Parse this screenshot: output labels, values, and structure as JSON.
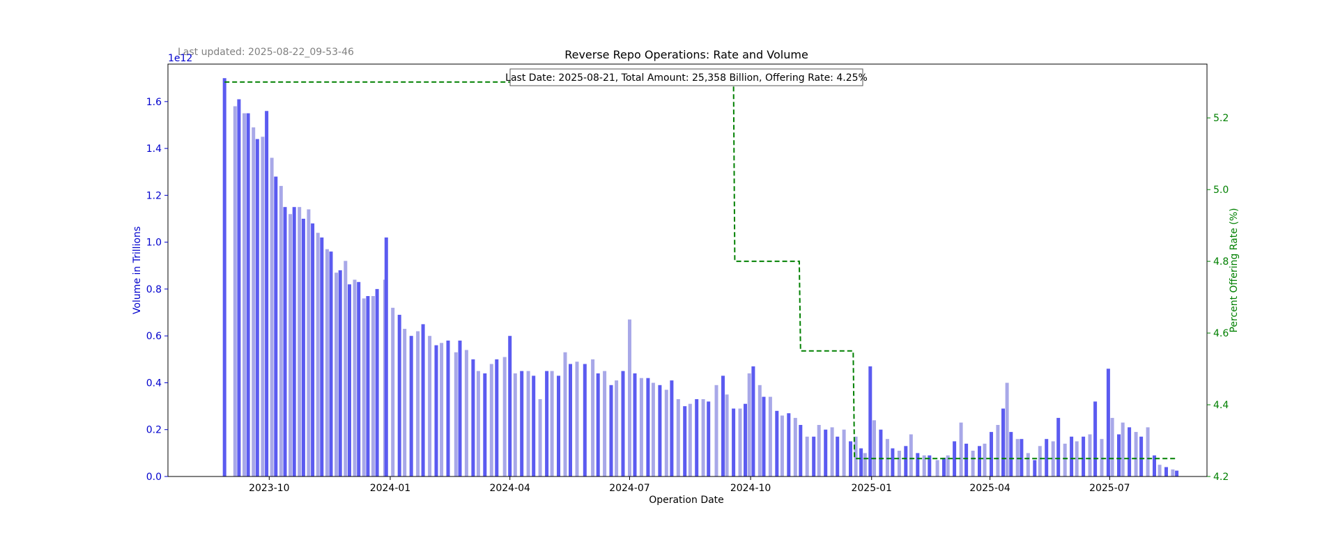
{
  "chart_data": {
    "type": "bar",
    "title": "Reverse Repo Operations: Rate and Volume",
    "updated_note": "Last updated: 2025-08-22_09-53-46",
    "annotation": "Last Date: 2025-08-21, Total Amount: 25,358 Billion, Offering Rate: 4.25%",
    "xlabel": "Operation Date",
    "ylabel_left": "Volume in Trillions",
    "ylabel_right": "Percent Offering Rate (%)",
    "left_offset_label": "1e12",
    "xlim": [
      "2023-07-16",
      "2025-09-13"
    ],
    "ylim_left": [
      0,
      1.76
    ],
    "ylim_right": [
      4.2,
      5.35
    ],
    "x_ticks": [
      "2023-10",
      "2024-01",
      "2024-04",
      "2024-07",
      "2024-10",
      "2025-01",
      "2025-04",
      "2025-07"
    ],
    "y_ticks_left": [
      "0.0",
      "0.2",
      "0.4",
      "0.6",
      "0.8",
      "1.0",
      "1.2",
      "1.4",
      "1.6"
    ],
    "y_ticks_right": [
      "4.2",
      "4.4",
      "4.6",
      "4.8",
      "5.0",
      "5.2"
    ],
    "colors": {
      "volume": "#5b5bf0",
      "volume_light": "#a8a8e8",
      "rate": "#008000",
      "left_axis": "#0000cd",
      "right_axis": "#008000"
    },
    "volume_series": {
      "name": "Volume",
      "points": [
        [
          "2023-08-28",
          1.7
        ],
        [
          "2023-09-05",
          1.58
        ],
        [
          "2023-09-08",
          1.61
        ],
        [
          "2023-09-12",
          1.55
        ],
        [
          "2023-09-15",
          1.55
        ],
        [
          "2023-09-19",
          1.49
        ],
        [
          "2023-09-22",
          1.44
        ],
        [
          "2023-09-26",
          1.45
        ],
        [
          "2023-09-29",
          1.56
        ],
        [
          "2023-10-03",
          1.36
        ],
        [
          "2023-10-06",
          1.28
        ],
        [
          "2023-10-10",
          1.24
        ],
        [
          "2023-10-13",
          1.15
        ],
        [
          "2023-10-17",
          1.12
        ],
        [
          "2023-10-20",
          1.15
        ],
        [
          "2023-10-24",
          1.15
        ],
        [
          "2023-10-27",
          1.1
        ],
        [
          "2023-10-31",
          1.14
        ],
        [
          "2023-11-03",
          1.08
        ],
        [
          "2023-11-07",
          1.04
        ],
        [
          "2023-11-10",
          1.02
        ],
        [
          "2023-11-14",
          0.97
        ],
        [
          "2023-11-17",
          0.96
        ],
        [
          "2023-11-21",
          0.87
        ],
        [
          "2023-11-24",
          0.88
        ],
        [
          "2023-11-28",
          0.92
        ],
        [
          "2023-12-01",
          0.82
        ],
        [
          "2023-12-05",
          0.84
        ],
        [
          "2023-12-08",
          0.83
        ],
        [
          "2023-12-12",
          0.76
        ],
        [
          "2023-12-15",
          0.77
        ],
        [
          "2023-12-19",
          0.77
        ],
        [
          "2023-12-22",
          0.8
        ],
        [
          "2023-12-28",
          0.84
        ],
        [
          "2023-12-29",
          1.02
        ],
        [
          "2024-01-03",
          0.72
        ],
        [
          "2024-01-08",
          0.69
        ],
        [
          "2024-01-12",
          0.63
        ],
        [
          "2024-01-17",
          0.6
        ],
        [
          "2024-01-22",
          0.62
        ],
        [
          "2024-01-26",
          0.65
        ],
        [
          "2024-01-31",
          0.6
        ],
        [
          "2024-02-05",
          0.56
        ],
        [
          "2024-02-09",
          0.57
        ],
        [
          "2024-02-14",
          0.58
        ],
        [
          "2024-02-20",
          0.53
        ],
        [
          "2024-02-23",
          0.58
        ],
        [
          "2024-02-28",
          0.54
        ],
        [
          "2024-03-04",
          0.5
        ],
        [
          "2024-03-08",
          0.45
        ],
        [
          "2024-03-13",
          0.44
        ],
        [
          "2024-03-18",
          0.48
        ],
        [
          "2024-03-22",
          0.5
        ],
        [
          "2024-03-28",
          0.51
        ],
        [
          "2024-04-01",
          0.6
        ],
        [
          "2024-04-05",
          0.44
        ],
        [
          "2024-04-10",
          0.45
        ],
        [
          "2024-04-15",
          0.45
        ],
        [
          "2024-04-19",
          0.43
        ],
        [
          "2024-04-24",
          0.33
        ],
        [
          "2024-04-29",
          0.45
        ],
        [
          "2024-05-03",
          0.45
        ],
        [
          "2024-05-08",
          0.43
        ],
        [
          "2024-05-13",
          0.53
        ],
        [
          "2024-05-17",
          0.48
        ],
        [
          "2024-05-22",
          0.49
        ],
        [
          "2024-05-28",
          0.48
        ],
        [
          "2024-06-03",
          0.5
        ],
        [
          "2024-06-07",
          0.44
        ],
        [
          "2024-06-12",
          0.45
        ],
        [
          "2024-06-17",
          0.39
        ],
        [
          "2024-06-21",
          0.41
        ],
        [
          "2024-06-26",
          0.45
        ],
        [
          "2024-07-01",
          0.67
        ],
        [
          "2024-07-05",
          0.44
        ],
        [
          "2024-07-10",
          0.42
        ],
        [
          "2024-07-15",
          0.42
        ],
        [
          "2024-07-19",
          0.4
        ],
        [
          "2024-07-24",
          0.39
        ],
        [
          "2024-07-29",
          0.37
        ],
        [
          "2024-08-02",
          0.41
        ],
        [
          "2024-08-07",
          0.33
        ],
        [
          "2024-08-12",
          0.3
        ],
        [
          "2024-08-16",
          0.31
        ],
        [
          "2024-08-21",
          0.33
        ],
        [
          "2024-08-26",
          0.33
        ],
        [
          "2024-08-30",
          0.32
        ],
        [
          "2024-09-05",
          0.39
        ],
        [
          "2024-09-10",
          0.43
        ],
        [
          "2024-09-13",
          0.35
        ],
        [
          "2024-09-18",
          0.29
        ],
        [
          "2024-09-23",
          0.29
        ],
        [
          "2024-09-27",
          0.31
        ],
        [
          "2024-09-30",
          0.44
        ],
        [
          "2024-10-03",
          0.47
        ],
        [
          "2024-10-08",
          0.39
        ],
        [
          "2024-10-11",
          0.34
        ],
        [
          "2024-10-16",
          0.34
        ],
        [
          "2024-10-21",
          0.28
        ],
        [
          "2024-10-25",
          0.26
        ],
        [
          "2024-10-30",
          0.27
        ],
        [
          "2024-11-04",
          0.25
        ],
        [
          "2024-11-08",
          0.22
        ],
        [
          "2024-11-13",
          0.17
        ],
        [
          "2024-11-18",
          0.17
        ],
        [
          "2024-11-22",
          0.22
        ],
        [
          "2024-11-27",
          0.2
        ],
        [
          "2024-12-02",
          0.21
        ],
        [
          "2024-12-06",
          0.17
        ],
        [
          "2024-12-11",
          0.2
        ],
        [
          "2024-12-16",
          0.15
        ],
        [
          "2024-12-20",
          0.17
        ],
        [
          "2024-12-24",
          0.12
        ],
        [
          "2024-12-27",
          0.1
        ],
        [
          "2024-12-31",
          0.47
        ],
        [
          "2025-01-03",
          0.24
        ],
        [
          "2025-01-08",
          0.2
        ],
        [
          "2025-01-13",
          0.16
        ],
        [
          "2025-01-17",
          0.12
        ],
        [
          "2025-01-22",
          0.11
        ],
        [
          "2025-01-27",
          0.13
        ],
        [
          "2025-01-31",
          0.18
        ],
        [
          "2025-02-05",
          0.1
        ],
        [
          "2025-02-10",
          0.09
        ],
        [
          "2025-02-14",
          0.09
        ],
        [
          "2025-02-20",
          0.07
        ],
        [
          "2025-02-25",
          0.08
        ],
        [
          "2025-02-28",
          0.09
        ],
        [
          "2025-03-05",
          0.15
        ],
        [
          "2025-03-10",
          0.23
        ],
        [
          "2025-03-14",
          0.14
        ],
        [
          "2025-03-19",
          0.11
        ],
        [
          "2025-03-24",
          0.13
        ],
        [
          "2025-03-28",
          0.14
        ],
        [
          "2025-04-02",
          0.19
        ],
        [
          "2025-04-07",
          0.22
        ],
        [
          "2025-04-11",
          0.29
        ],
        [
          "2025-04-14",
          0.4
        ],
        [
          "2025-04-17",
          0.19
        ],
        [
          "2025-04-22",
          0.16
        ],
        [
          "2025-04-25",
          0.16
        ],
        [
          "2025-04-30",
          0.1
        ],
        [
          "2025-05-05",
          0.07
        ],
        [
          "2025-05-09",
          0.13
        ],
        [
          "2025-05-14",
          0.16
        ],
        [
          "2025-05-19",
          0.15
        ],
        [
          "2025-05-23",
          0.25
        ],
        [
          "2025-05-28",
          0.14
        ],
        [
          "2025-06-02",
          0.17
        ],
        [
          "2025-06-06",
          0.15
        ],
        [
          "2025-06-11",
          0.17
        ],
        [
          "2025-06-16",
          0.18
        ],
        [
          "2025-06-20",
          0.32
        ],
        [
          "2025-06-25",
          0.16
        ],
        [
          "2025-06-30",
          0.46
        ],
        [
          "2025-07-03",
          0.25
        ],
        [
          "2025-07-08",
          0.18
        ],
        [
          "2025-07-11",
          0.23
        ],
        [
          "2025-07-16",
          0.21
        ],
        [
          "2025-07-21",
          0.19
        ],
        [
          "2025-07-25",
          0.17
        ],
        [
          "2025-07-30",
          0.21
        ],
        [
          "2025-08-04",
          0.09
        ],
        [
          "2025-08-08",
          0.05
        ],
        [
          "2025-08-13",
          0.04
        ],
        [
          "2025-08-18",
          0.03
        ],
        [
          "2025-08-21",
          0.025
        ]
      ]
    },
    "rate_series": {
      "name": "Offering Rate",
      "points": [
        [
          "2023-08-28",
          5.3
        ],
        [
          "2024-09-18",
          5.3
        ],
        [
          "2024-09-19",
          4.8
        ],
        [
          "2024-11-07",
          4.8
        ],
        [
          "2024-11-08",
          4.55
        ],
        [
          "2024-12-18",
          4.55
        ],
        [
          "2024-12-19",
          4.25
        ],
        [
          "2025-08-21",
          4.25
        ]
      ]
    }
  }
}
